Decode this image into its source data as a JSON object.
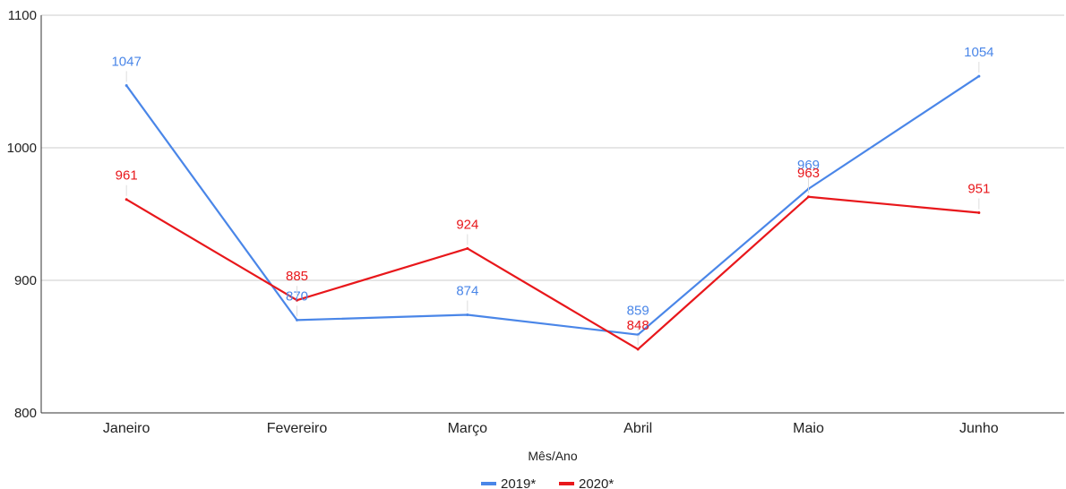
{
  "chart_data": {
    "type": "line",
    "title": "",
    "xlabel": "Mês/Ano",
    "ylabel": "",
    "categories": [
      "Janeiro",
      "Fevereiro",
      "Março",
      "Abril",
      "Maio",
      "Junho"
    ],
    "ylim": [
      800,
      1100
    ],
    "yticks": [
      "800",
      "900",
      "1000",
      "1100"
    ],
    "grid": true,
    "legend_position": "bottom",
    "series": [
      {
        "name": "2019*",
        "color": "#4a86e8",
        "values": [
          1047,
          870,
          874,
          859,
          969,
          1054
        ]
      },
      {
        "name": "2020*",
        "color": "#e8171b",
        "values": [
          961,
          885,
          924,
          848,
          963,
          951
        ]
      }
    ]
  }
}
